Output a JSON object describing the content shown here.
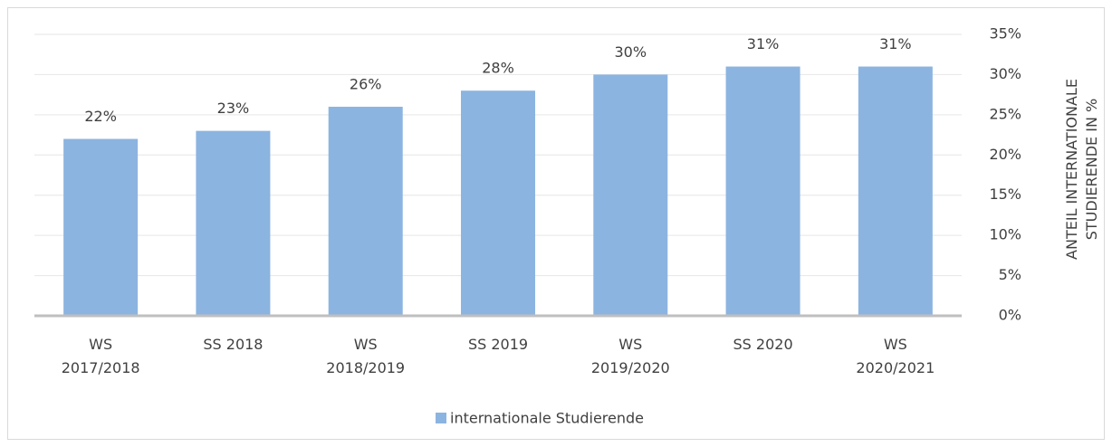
{
  "chart_data": {
    "type": "bar",
    "categories": [
      "WS 2017/2018",
      "SS 2018",
      "WS 2018/2019",
      "SS 2019",
      "WS 2019/2020",
      "SS 2020",
      "WS 2020/2021"
    ],
    "series": [
      {
        "name": "internationale Studierende",
        "color": "#8cb4e0",
        "values": [
          22,
          23,
          26,
          28,
          30,
          31,
          31
        ],
        "value_labels": [
          "22%",
          "23%",
          "26%",
          "28%",
          "30%",
          "31%",
          "31%"
        ]
      }
    ],
    "y_axis_label": "ANTEIL INTERNATIONALE STUDIERENDE IN %",
    "y_axis_side": "right",
    "ylim": [
      0,
      35
    ],
    "yticks": [
      {
        "value": 0,
        "label": "0%"
      },
      {
        "value": 5,
        "label": "5%"
      },
      {
        "value": 10,
        "label": "10%"
      },
      {
        "value": 15,
        "label": "15%"
      },
      {
        "value": 20,
        "label": "20%"
      },
      {
        "value": 25,
        "label": "25%"
      },
      {
        "value": 30,
        "label": "30%"
      },
      {
        "value": 35,
        "label": "35%"
      }
    ],
    "grid": true,
    "legend": "bottom"
  }
}
